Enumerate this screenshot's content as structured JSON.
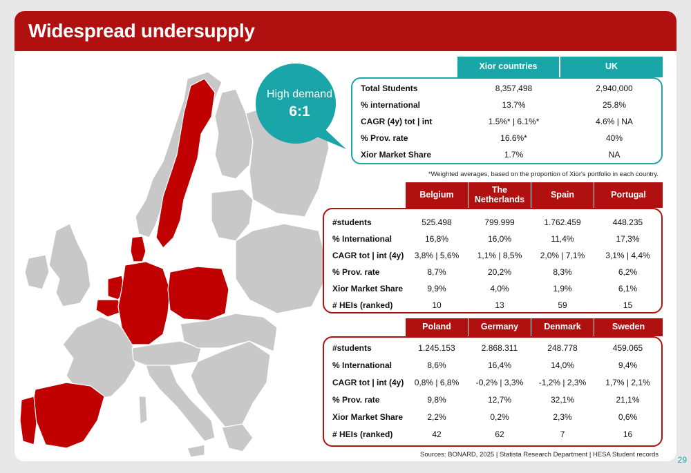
{
  "title": "Widespread undersupply",
  "bubble": {
    "line1": "High demand",
    "line2": "6:1"
  },
  "uk_table": {
    "headers": [
      "Xior countries",
      "UK"
    ],
    "rows": [
      {
        "label": "Total Students",
        "values": [
          "8,357,498",
          "2,940,000"
        ]
      },
      {
        "label": "% international",
        "values": [
          "13.7%",
          "25.8%"
        ]
      },
      {
        "label": "CAGR (4y) tot | int",
        "values": [
          "1.5%* | 6.1%*",
          "4.6% | NA"
        ]
      },
      {
        "label": "% Prov. rate",
        "values": [
          "16.6%*",
          "40%"
        ]
      },
      {
        "label": "Xior Market Share",
        "values": [
          "1.7%",
          "NA"
        ]
      }
    ],
    "footnote": "*Weighted averages, based on the proportion of Xior's portfolio in each country."
  },
  "table1": {
    "headers": [
      "Belgium",
      "The Netherlands",
      "Spain",
      "Portugal"
    ],
    "rows": [
      {
        "label": "#students",
        "values": [
          "525.498",
          "799.999",
          "1.762.459",
          "448.235"
        ]
      },
      {
        "label": "% International",
        "values": [
          "16,8%",
          "16,0%",
          "11,4%",
          "17,3%"
        ]
      },
      {
        "label": "CAGR tot | int (4y)",
        "values": [
          "3,8% | 5,6%",
          "1,1% | 8,5%",
          "2,0% | 7,1%",
          "3,1% | 4,4%"
        ]
      },
      {
        "label": "% Prov. rate",
        "values": [
          "8,7%",
          "20,2%",
          "8,3%",
          "6,2%"
        ]
      },
      {
        "label": "Xior Market Share",
        "values": [
          "9,9%",
          "4,0%",
          "1,9%",
          "6,1%"
        ]
      },
      {
        "label": "# HEIs (ranked)",
        "values": [
          "10",
          "13",
          "59",
          "15"
        ]
      }
    ]
  },
  "table2": {
    "headers": [
      "Poland",
      "Germany",
      "Denmark",
      "Sweden"
    ],
    "rows": [
      {
        "label": "#students",
        "values": [
          "1.245.153",
          "2.868.311",
          "248.778",
          "459.065"
        ]
      },
      {
        "label": "% International",
        "values": [
          "8,6%",
          "16,4%",
          "14,0%",
          "9,4%"
        ]
      },
      {
        "label": "CAGR tot | int (4y)",
        "values": [
          "0,8% | 6,8%",
          "-0,2% | 3,3%",
          "-1,2% | 2,3%",
          "1,7% | 2,1%"
        ]
      },
      {
        "label": "% Prov. rate",
        "values": [
          "9,8%",
          "12,7%",
          "32,1%",
          "21,1%"
        ]
      },
      {
        "label": "Xior Market Share",
        "values": [
          "2,2%",
          "0,2%",
          "2,3%",
          "0,6%"
        ]
      },
      {
        "label": "# HEIs (ranked)",
        "values": [
          "42",
          "62",
          "7",
          "16"
        ]
      }
    ]
  },
  "sources": "Sources: BONARD, 2025 | Statista Research Department | HESA Student records",
  "page_number": "29",
  "colors": {
    "brand_red": "#b01010",
    "teal": "#1aa5a8",
    "map_grey": "#c8c8c8",
    "map_red": "#c00000"
  }
}
